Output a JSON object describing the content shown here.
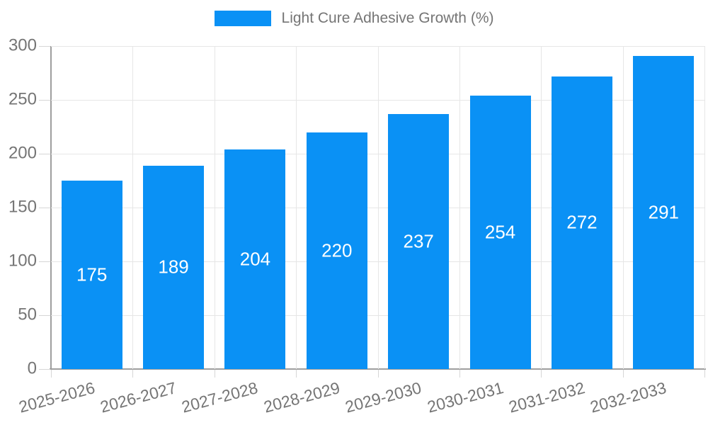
{
  "legend": {
    "items": [
      {
        "label": "Light Cure Adhesive Growth (%)",
        "color": "#0a91f5"
      }
    ],
    "position": "top"
  },
  "colors": {
    "bar": "#0a91f5",
    "grid": "#e6e6e6",
    "axis": "#9e9e9e",
    "tick": "#d6d6d6",
    "text": "#757575",
    "value_label": "#ffffff",
    "background": "#ffffff"
  },
  "chart_data": {
    "type": "bar",
    "title": "Light Cure Adhesive Growth (%)",
    "categories": [
      "2025-2026",
      "2026-2027",
      "2027-2028",
      "2028-2029",
      "2029-2030",
      "2030-2031",
      "2031-2032",
      "2032-2033"
    ],
    "values": [
      175,
      189,
      204,
      220,
      237,
      254,
      272,
      291
    ],
    "xlabel": "",
    "ylabel": "",
    "ylim": [
      0,
      300
    ],
    "ytick_step": 50,
    "yticks": [
      0,
      50,
      100,
      150,
      200,
      250,
      300
    ],
    "grid": true,
    "legend_position": "top",
    "value_label_position": "inside-center",
    "x_label_rotation_deg": -15
  }
}
